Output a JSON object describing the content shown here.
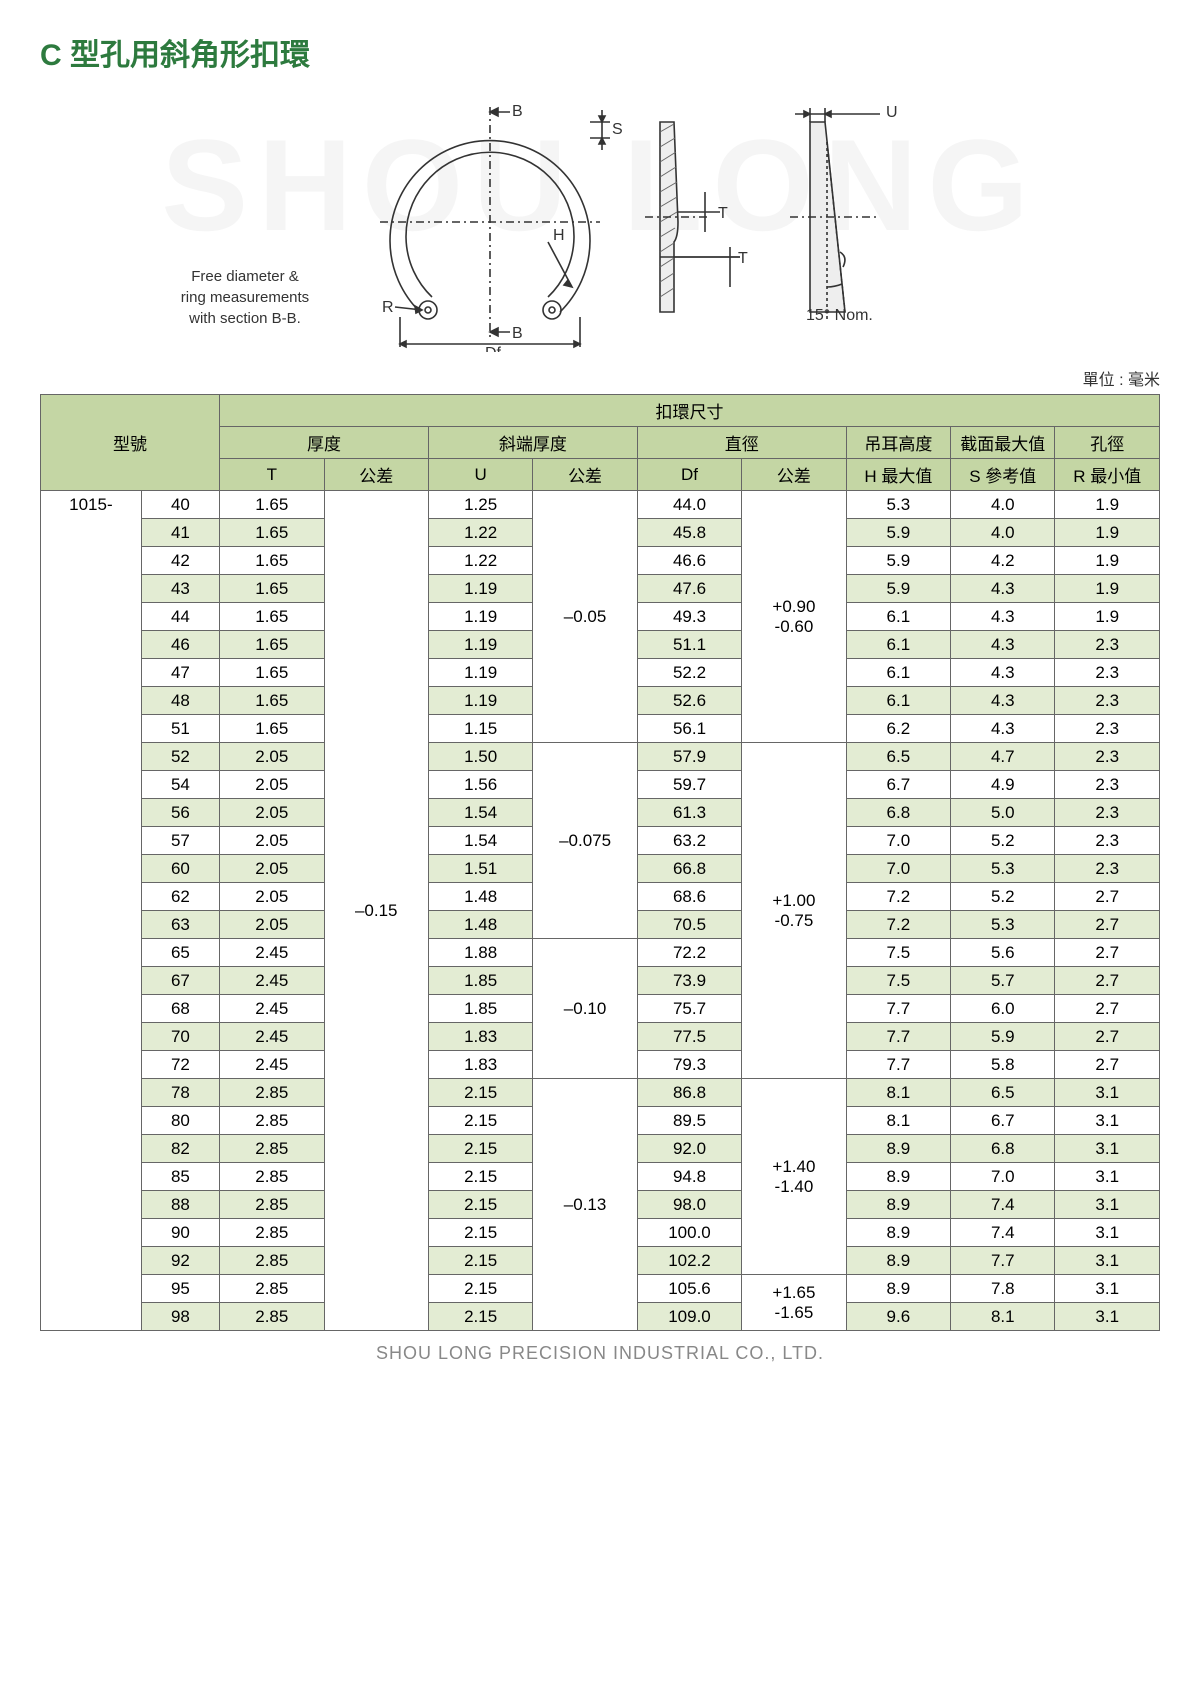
{
  "title": "C 型孔用斜角形扣環",
  "watermark": "SHOU LONG",
  "diagram": {
    "caption_l1": "Free diameter &",
    "caption_l2": "ring measurements",
    "caption_l3": "with section B-B.",
    "labels": {
      "B": "B",
      "S": "S",
      "H": "H",
      "T": "T",
      "R": "R",
      "Df": "Df",
      "U": "U",
      "angle": "15° Nom."
    }
  },
  "unit_label": "單位 : 毫米",
  "headers": {
    "model": "型號",
    "ring_dims": "扣環尺寸",
    "thickness": "厚度",
    "bevel_thickness": "斜端厚度",
    "diameter": "直徑",
    "lug_height": "吊耳高度",
    "section_max": "截面最大值",
    "hole_dia": "孔徑",
    "T": "T",
    "U": "U",
    "Df": "Df",
    "tol": "公差",
    "H_max": "H 最大值",
    "S_ref": "S 參考值",
    "R_min": "R 最小值"
  },
  "model_prefix": "1015-",
  "tol_T": "–0.15",
  "tol_groups_U": [
    {
      "value": "–0.05",
      "span": 9
    },
    {
      "value": "–0.075",
      "span": 7
    },
    {
      "value": "–0.10",
      "span": 5
    },
    {
      "value": "–0.13",
      "span": 9
    }
  ],
  "tol_groups_Df": [
    {
      "value": "+0.90\n-0.60",
      "span": 9
    },
    {
      "value": "+1.00\n-0.75",
      "span": 12
    },
    {
      "value": "+1.40\n-1.40",
      "span": 7
    },
    {
      "value": "+1.65\n-1.65",
      "span": 2
    }
  ],
  "rows": [
    {
      "n": "40",
      "T": "1.65",
      "U": "1.25",
      "Df": "44.0",
      "H": "5.3",
      "S": "4.0",
      "R": "1.9"
    },
    {
      "n": "41",
      "T": "1.65",
      "U": "1.22",
      "Df": "45.8",
      "H": "5.9",
      "S": "4.0",
      "R": "1.9"
    },
    {
      "n": "42",
      "T": "1.65",
      "U": "1.22",
      "Df": "46.6",
      "H": "5.9",
      "S": "4.2",
      "R": "1.9"
    },
    {
      "n": "43",
      "T": "1.65",
      "U": "1.19",
      "Df": "47.6",
      "H": "5.9",
      "S": "4.3",
      "R": "1.9"
    },
    {
      "n": "44",
      "T": "1.65",
      "U": "1.19",
      "Df": "49.3",
      "H": "6.1",
      "S": "4.3",
      "R": "1.9"
    },
    {
      "n": "46",
      "T": "1.65",
      "U": "1.19",
      "Df": "51.1",
      "H": "6.1",
      "S": "4.3",
      "R": "2.3"
    },
    {
      "n": "47",
      "T": "1.65",
      "U": "1.19",
      "Df": "52.2",
      "H": "6.1",
      "S": "4.3",
      "R": "2.3"
    },
    {
      "n": "48",
      "T": "1.65",
      "U": "1.19",
      "Df": "52.6",
      "H": "6.1",
      "S": "4.3",
      "R": "2.3"
    },
    {
      "n": "51",
      "T": "1.65",
      "U": "1.15",
      "Df": "56.1",
      "H": "6.2",
      "S": "4.3",
      "R": "2.3"
    },
    {
      "n": "52",
      "T": "2.05",
      "U": "1.50",
      "Df": "57.9",
      "H": "6.5",
      "S": "4.7",
      "R": "2.3"
    },
    {
      "n": "54",
      "T": "2.05",
      "U": "1.56",
      "Df": "59.7",
      "H": "6.7",
      "S": "4.9",
      "R": "2.3"
    },
    {
      "n": "56",
      "T": "2.05",
      "U": "1.54",
      "Df": "61.3",
      "H": "6.8",
      "S": "5.0",
      "R": "2.3"
    },
    {
      "n": "57",
      "T": "2.05",
      "U": "1.54",
      "Df": "63.2",
      "H": "7.0",
      "S": "5.2",
      "R": "2.3"
    },
    {
      "n": "60",
      "T": "2.05",
      "U": "1.51",
      "Df": "66.8",
      "H": "7.0",
      "S": "5.3",
      "R": "2.3"
    },
    {
      "n": "62",
      "T": "2.05",
      "U": "1.48",
      "Df": "68.6",
      "H": "7.2",
      "S": "5.2",
      "R": "2.7"
    },
    {
      "n": "63",
      "T": "2.05",
      "U": "1.48",
      "Df": "70.5",
      "H": "7.2",
      "S": "5.3",
      "R": "2.7"
    },
    {
      "n": "65",
      "T": "2.45",
      "U": "1.88",
      "Df": "72.2",
      "H": "7.5",
      "S": "5.6",
      "R": "2.7"
    },
    {
      "n": "67",
      "T": "2.45",
      "U": "1.85",
      "Df": "73.9",
      "H": "7.5",
      "S": "5.7",
      "R": "2.7"
    },
    {
      "n": "68",
      "T": "2.45",
      "U": "1.85",
      "Df": "75.7",
      "H": "7.7",
      "S": "6.0",
      "R": "2.7"
    },
    {
      "n": "70",
      "T": "2.45",
      "U": "1.83",
      "Df": "77.5",
      "H": "7.7",
      "S": "5.9",
      "R": "2.7"
    },
    {
      "n": "72",
      "T": "2.45",
      "U": "1.83",
      "Df": "79.3",
      "H": "7.7",
      "S": "5.8",
      "R": "2.7"
    },
    {
      "n": "78",
      "T": "2.85",
      "U": "2.15",
      "Df": "86.8",
      "H": "8.1",
      "S": "6.5",
      "R": "3.1"
    },
    {
      "n": "80",
      "T": "2.85",
      "U": "2.15",
      "Df": "89.5",
      "H": "8.1",
      "S": "6.7",
      "R": "3.1"
    },
    {
      "n": "82",
      "T": "2.85",
      "U": "2.15",
      "Df": "92.0",
      "H": "8.9",
      "S": "6.8",
      "R": "3.1"
    },
    {
      "n": "85",
      "T": "2.85",
      "U": "2.15",
      "Df": "94.8",
      "H": "8.9",
      "S": "7.0",
      "R": "3.1"
    },
    {
      "n": "88",
      "T": "2.85",
      "U": "2.15",
      "Df": "98.0",
      "H": "8.9",
      "S": "7.4",
      "R": "3.1"
    },
    {
      "n": "90",
      "T": "2.85",
      "U": "2.15",
      "Df": "100.0",
      "H": "8.9",
      "S": "7.4",
      "R": "3.1"
    },
    {
      "n": "92",
      "T": "2.85",
      "U": "2.15",
      "Df": "102.2",
      "H": "8.9",
      "S": "7.7",
      "R": "3.1"
    },
    {
      "n": "95",
      "T": "2.85",
      "U": "2.15",
      "Df": "105.6",
      "H": "8.9",
      "S": "7.8",
      "R": "3.1"
    },
    {
      "n": "98",
      "T": "2.85",
      "U": "2.15",
      "Df": "109.0",
      "H": "9.6",
      "S": "8.1",
      "R": "3.1"
    }
  ],
  "footer": "SHOU LONG PRECISION INDUSTRIAL CO., LTD.",
  "colors": {
    "title": "#2d7a3e",
    "header_bg": "#c4d6a4",
    "stripe_bg": "#e3ecd3",
    "border": "#666666",
    "watermark": "#f5f5f5",
    "footer": "#888888"
  }
}
